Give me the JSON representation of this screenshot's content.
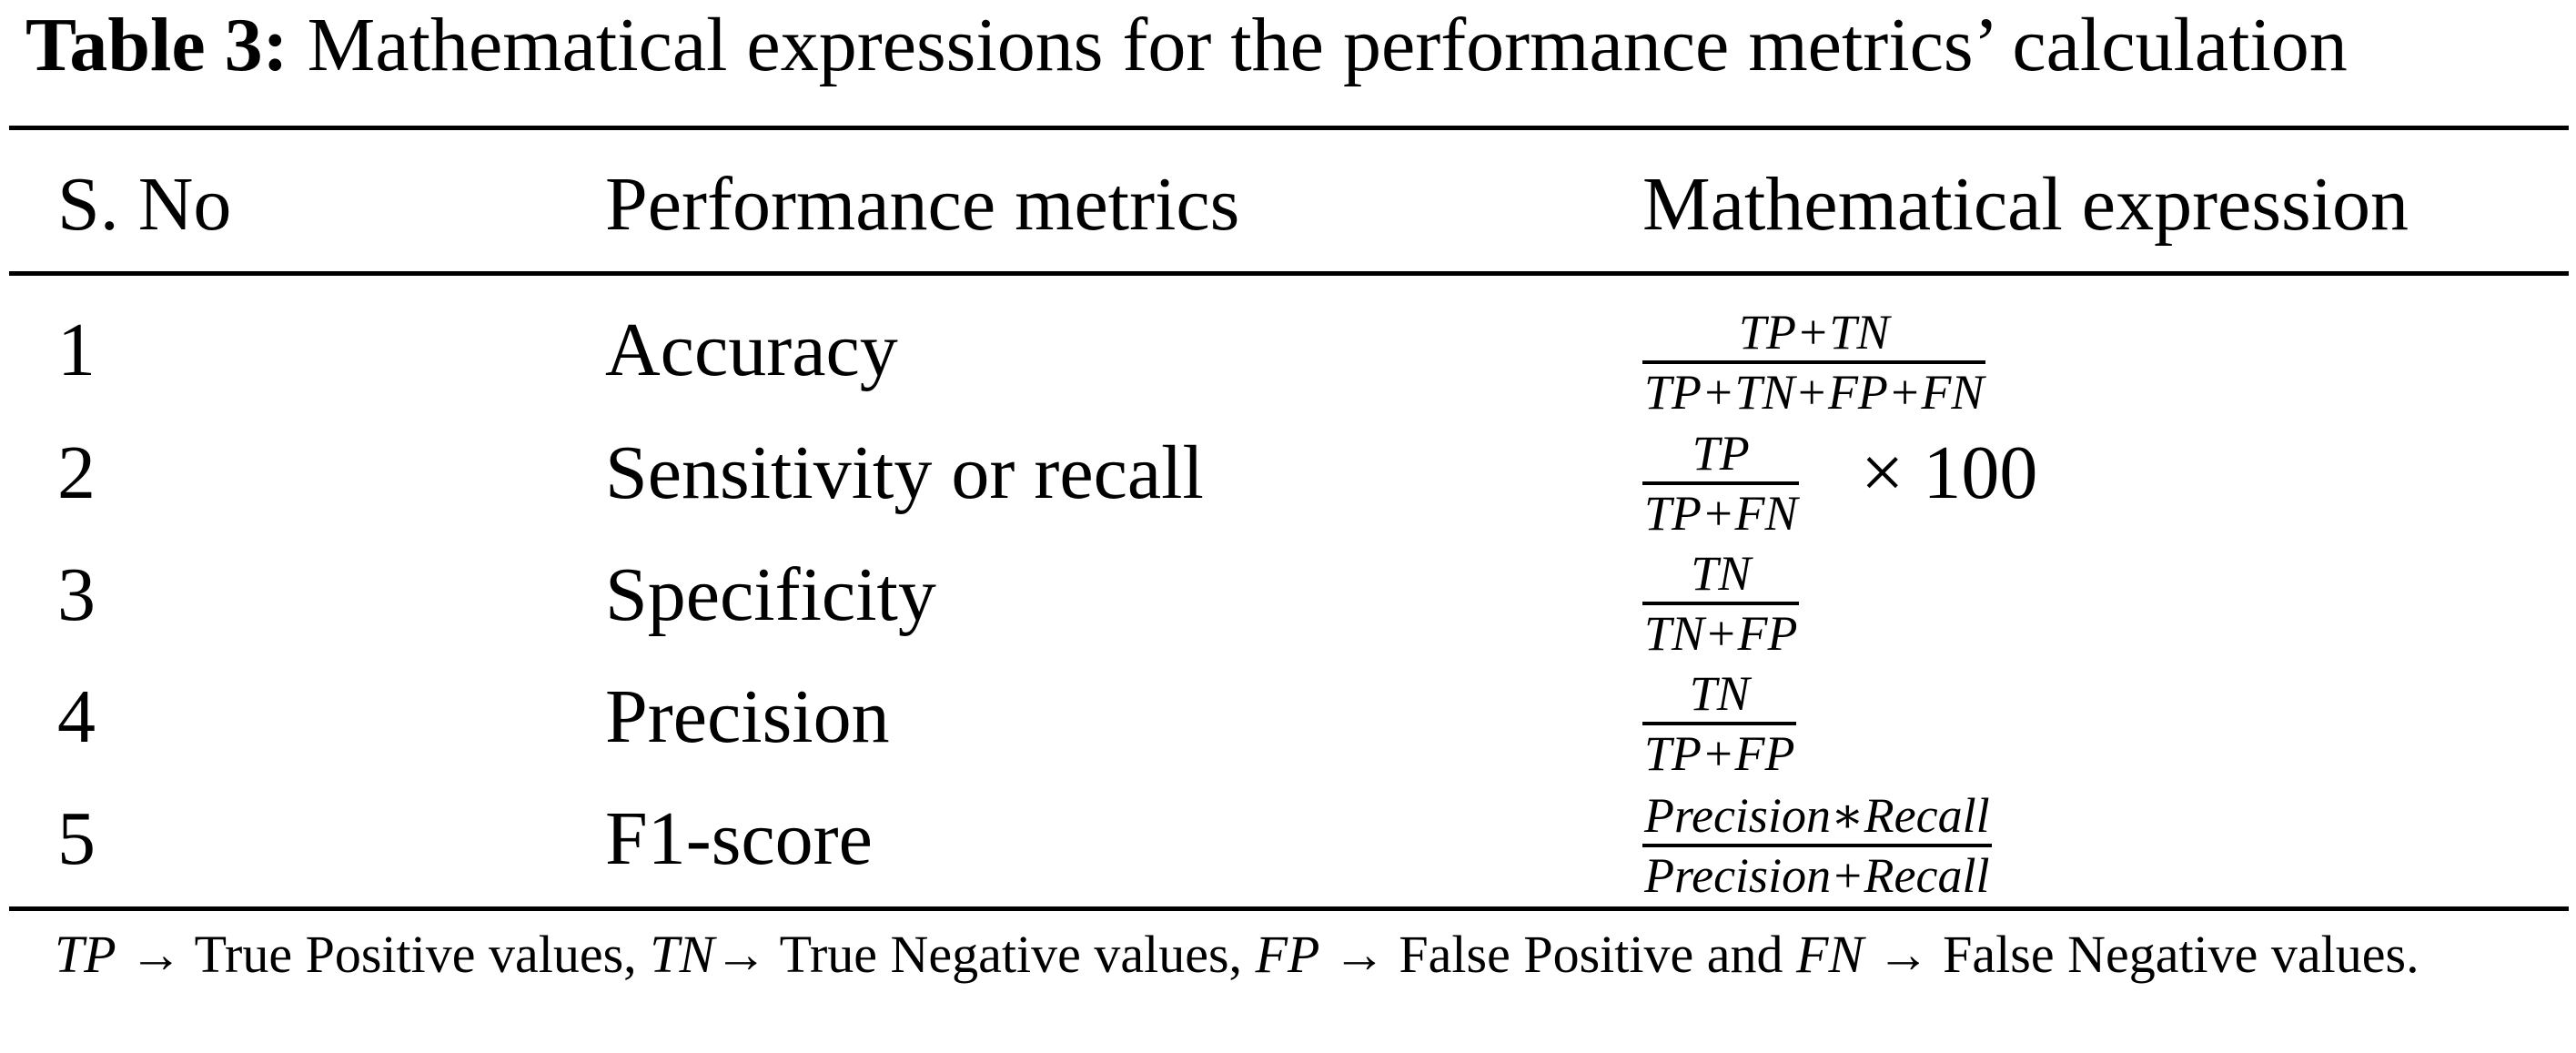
{
  "caption": {
    "label": "Table 3:",
    "text": "Mathematical expressions for the performance metrics’ calculation"
  },
  "table": {
    "headers": [
      "S. No",
      "Performance metrics",
      "Mathematical expression"
    ],
    "rows": [
      {
        "sno": "1",
        "metric": "Accuracy",
        "numerator": "TP+TN",
        "denominator": "TP+TN+FP+FN",
        "suffix": ""
      },
      {
        "sno": "2",
        "metric": "Sensitivity or recall",
        "numerator": "TP",
        "denominator": "TP+FN",
        "suffix": "× 100"
      },
      {
        "sno": "3",
        "metric": "Specificity",
        "numerator": "TN",
        "denominator": "TN+FP",
        "suffix": ""
      },
      {
        "sno": "4",
        "metric": "Precision",
        "numerator": "TN",
        "denominator": "TP+FP",
        "suffix": ""
      },
      {
        "sno": "5",
        "metric": "F1-score",
        "numerator": "Precision∗Recall",
        "denominator": "Precision+Recall",
        "suffix": ""
      }
    ]
  },
  "footnote": {
    "tp_abbr": "TP",
    "tp_text": " → True Positive values, ",
    "tn_abbr": "TN",
    "tn_text": "→ True Negative values, ",
    "fp_abbr": "FP",
    "fp_text": " → False Positive and ",
    "fn_abbr": "FN",
    "fn_text": " → False Negative values."
  }
}
